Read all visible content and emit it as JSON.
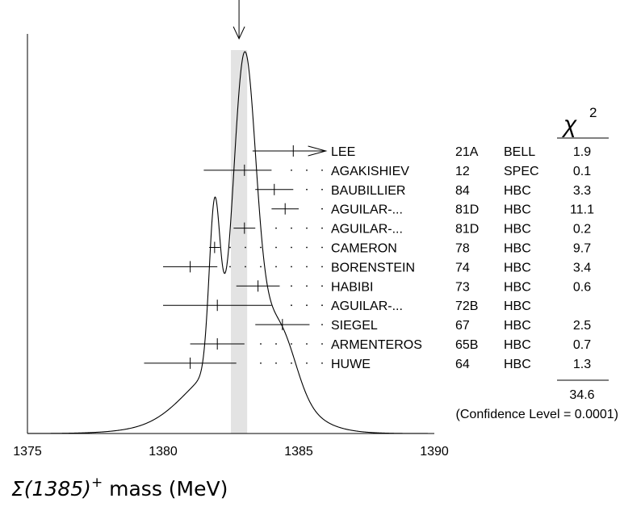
{
  "chart_data": {
    "type": "scatter",
    "title": "",
    "xlabel": {
      "symbol": "Σ(1385)",
      "charge": "+",
      "text": " mass (MeV)"
    },
    "xlim": [
      1375,
      1390
    ],
    "xticks": [
      "1375",
      "1380",
      "1385",
      "1390"
    ],
    "average": {
      "center": 1382.8,
      "band": [
        1382.5,
        1383.1
      ]
    },
    "chi2_header": {
      "symbol": "χ",
      "power": "2"
    },
    "chi2_total": "34.6",
    "confidence_level": "(Confidence Level = 0.0001)",
    "measurements": [
      {
        "author": "LEE",
        "year": "21A",
        "technique": "BELL",
        "chi2": "1.9",
        "value": 1384.8,
        "low": 1383.3,
        "high": 1386.0,
        "arrow_high": true
      },
      {
        "author": "AGAKISHIEV",
        "year": "12",
        "technique": "SPEC",
        "chi2": "0.1",
        "value": 1383.0,
        "low": 1381.5,
        "high": 1384.0,
        "arrow_high": false
      },
      {
        "author": "BAUBILLIER",
        "year": "84",
        "technique": "HBC",
        "chi2": "3.3",
        "value": 1384.1,
        "low": 1383.4,
        "high": 1384.8,
        "arrow_high": false
      },
      {
        "author": "AGUILAR-...",
        "year": "81D",
        "technique": "HBC",
        "chi2": "11.1",
        "value": 1384.5,
        "low": 1384.0,
        "high": 1385.0,
        "arrow_high": false
      },
      {
        "author": "AGUILAR-...",
        "year": "81D",
        "technique": "HBC",
        "chi2": "0.2",
        "value": 1383.0,
        "low": 1382.6,
        "high": 1383.4,
        "arrow_high": false
      },
      {
        "author": "CAMERON",
        "year": "78",
        "technique": "HBC",
        "chi2": "9.7",
        "value": 1381.9,
        "low": 1381.7,
        "high": 1382.1,
        "arrow_high": false
      },
      {
        "author": "BORENSTEIN",
        "year": "74",
        "technique": "HBC",
        "chi2": "3.4",
        "value": 1381.0,
        "low": 1380.0,
        "high": 1382.0,
        "arrow_high": false
      },
      {
        "author": "HABIBI",
        "year": "73",
        "technique": "HBC",
        "chi2": "0.6",
        "value": 1383.5,
        "low": 1382.7,
        "high": 1384.3,
        "arrow_high": false
      },
      {
        "author": "AGUILAR-...",
        "year": "72B",
        "technique": "HBC",
        "chi2": "",
        "value": 1382.0,
        "low": 1380.0,
        "high": 1384.0,
        "arrow_high": false
      },
      {
        "author": "SIEGEL",
        "year": "67",
        "technique": "HBC",
        "chi2": "2.5",
        "value": 1384.4,
        "low": 1383.4,
        "high": 1385.4,
        "arrow_high": false
      },
      {
        "author": "ARMENTEROS",
        "year": "65B",
        "technique": "HBC",
        "chi2": "0.7",
        "value": 1382.0,
        "low": 1381.0,
        "high": 1383.0,
        "arrow_high": false
      },
      {
        "author": "HUWE",
        "year": "64",
        "technique": "HBC",
        "chi2": "1.3",
        "value": 1381.0,
        "low": 1379.3,
        "high": 1382.7,
        "arrow_high": false
      }
    ]
  }
}
